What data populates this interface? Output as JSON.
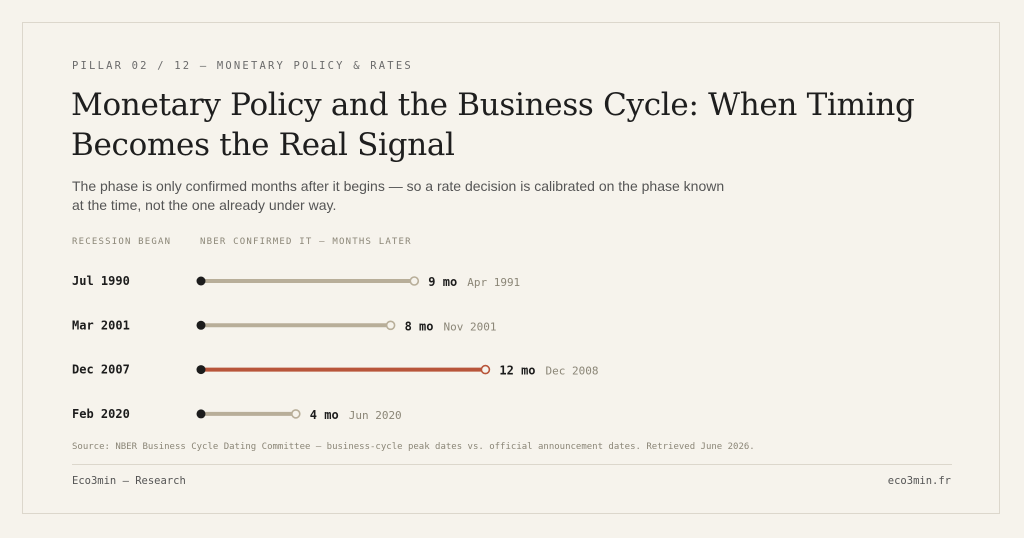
{
  "header": {
    "eyebrow": "PILLAR 02 / 12 — MONETARY POLICY & RATES",
    "title": "Monetary Policy and the Business Cycle: When Timing Becomes the Real Signal",
    "subtitle": "The phase is only confirmed months after it begins — so a rate decision is calibrated on the phase known at the time, not the one already under way."
  },
  "columns": {
    "left": "RECESSION BEGAN",
    "right": "NBER CONFIRMED IT — MONTHS LATER"
  },
  "colors": {
    "bar": "#b8ae99",
    "highlight": "#b8553a",
    "dot": "#1c1c1c"
  },
  "chart_data": {
    "type": "bar",
    "orientation": "horizontal",
    "categories": [
      "Jul 1990",
      "Mar 2001",
      "Dec 2007",
      "Feb 2020"
    ],
    "values": [
      9,
      8,
      12,
      4
    ],
    "value_labels": [
      "9 mo",
      "8 mo",
      "12 mo",
      "4 mo"
    ],
    "announced": [
      "Apr 1991",
      "Nov 2001",
      "Dec 2008",
      "Jun 2020"
    ],
    "highlight_index": 2,
    "grid": false
  },
  "footer": {
    "source": "Source: NBER Business Cycle Dating Committee — business-cycle peak dates vs. official announcement dates. Retrieved June 2026.",
    "left": "Eco3min — Research",
    "right": "eco3min.fr"
  }
}
